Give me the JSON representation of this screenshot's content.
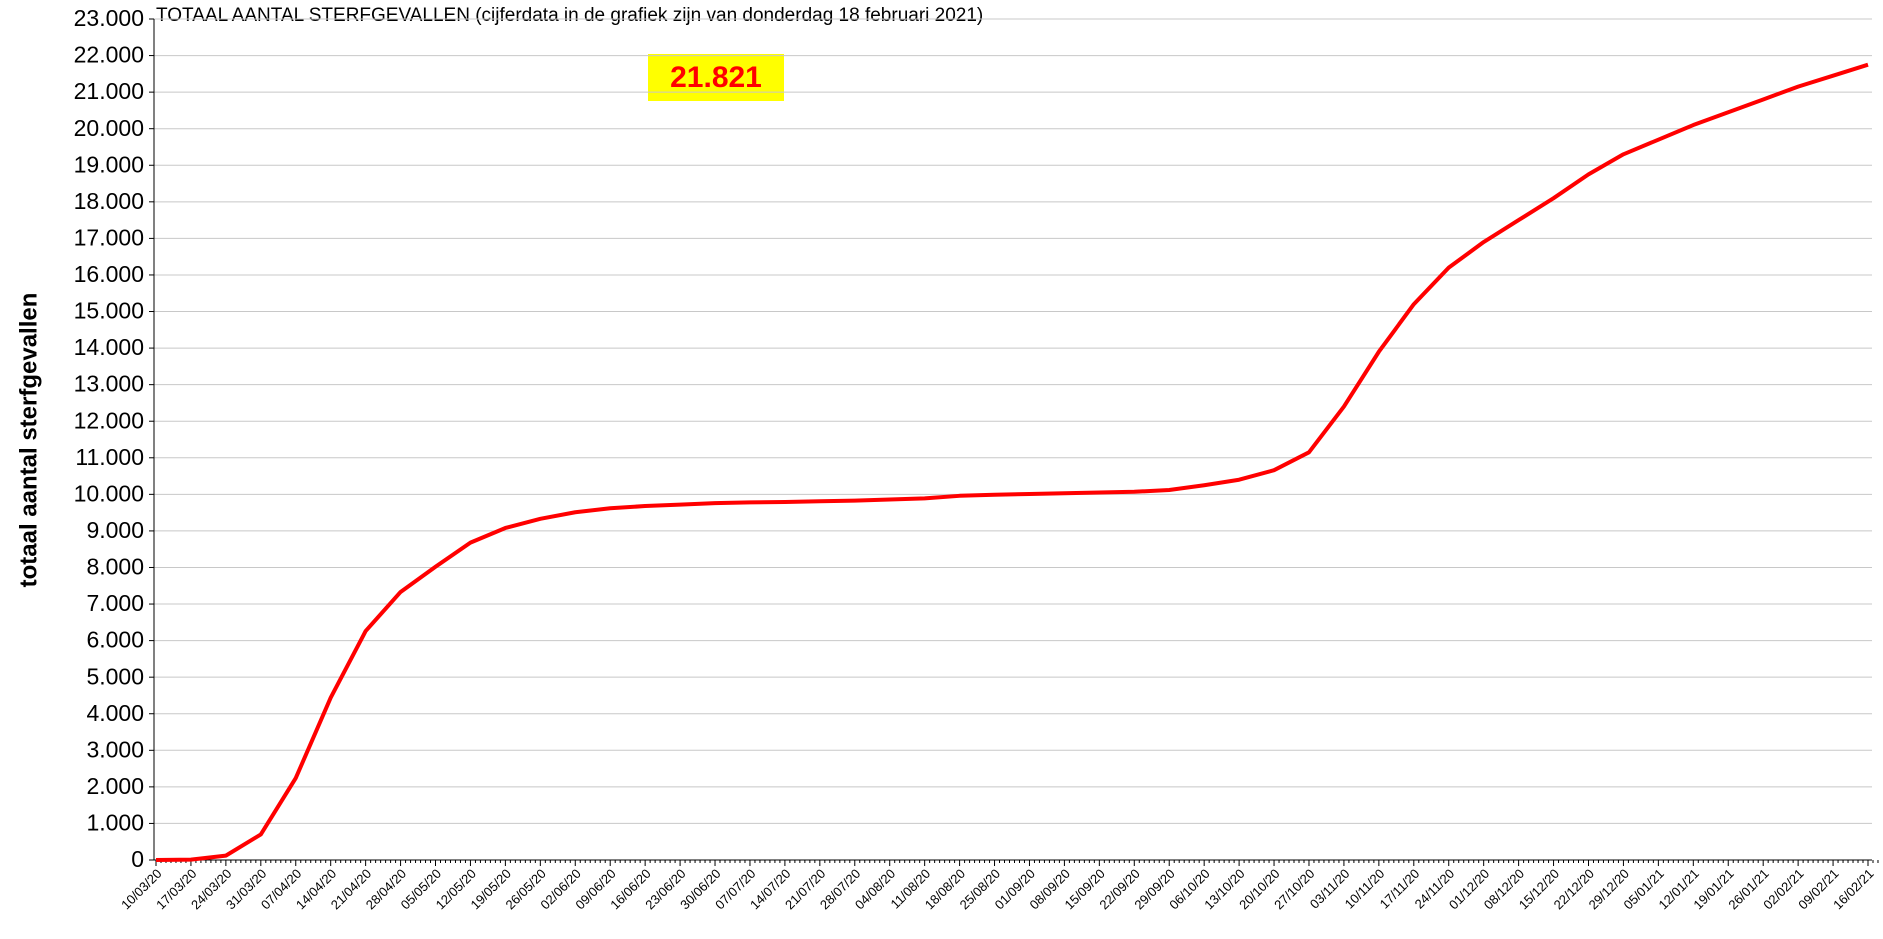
{
  "chart_data": {
    "type": "line",
    "title": "TOTAAL AANTAL STERFGEVALLEN (cijferdata in de grafiek zijn van donderdag 18 februari 2021)",
    "y_label": "totaal aantal sterfgevallen",
    "annotation": "21.821",
    "categories": [
      "10/03/20",
      "17/03/20",
      "24/03/20",
      "31/03/20",
      "07/04/20",
      "14/04/20",
      "21/04/20",
      "28/04/20",
      "05/05/20",
      "12/05/20",
      "19/05/20",
      "26/05/20",
      "02/06/20",
      "09/06/20",
      "16/06/20",
      "23/06/20",
      "30/06/20",
      "07/07/20",
      "14/07/20",
      "21/07/20",
      "28/07/20",
      "04/08/20",
      "11/08/20",
      "18/08/20",
      "25/08/20",
      "01/09/20",
      "08/09/20",
      "15/09/20",
      "22/09/20",
      "29/09/20",
      "06/10/20",
      "13/10/20",
      "20/10/20",
      "27/10/20",
      "03/11/20",
      "10/11/20",
      "17/11/20",
      "24/11/20",
      "01/12/20",
      "08/12/20",
      "15/12/20",
      "22/12/20",
      "29/12/20",
      "05/01/21",
      "12/01/21",
      "19/01/21",
      "26/01/21",
      "02/02/21",
      "09/02/21",
      "16/02/21"
    ],
    "series": [
      {
        "name": "totaal aantal sterfgevallen",
        "color": "#ff0000",
        "values": [
          0,
          10,
          120,
          700,
          2240,
          4440,
          6260,
          7330,
          8020,
          8680,
          9080,
          9330,
          9510,
          9620,
          9680,
          9720,
          9760,
          9780,
          9790,
          9810,
          9830,
          9860,
          9890,
          9960,
          9990,
          10010,
          10030,
          10050,
          10070,
          10120,
          10250,
          10400,
          10660,
          11150,
          12400,
          13900,
          15200,
          16200,
          16900,
          17500,
          18100,
          18750,
          19300,
          19700,
          20100,
          20450,
          20800,
          21150,
          21450,
          21750
        ]
      }
    ],
    "ylim": [
      0,
      23000
    ],
    "yticks": [
      0,
      {
        "value": 1000,
        "label": "1.000"
      },
      {
        "value": 2000,
        "label": "2.000"
      },
      {
        "value": 3000,
        "label": "3.000"
      },
      {
        "value": 4000,
        "label": "4.000"
      },
      {
        "value": 5000,
        "label": "5.000"
      },
      {
        "value": 6000,
        "label": "6.000"
      },
      {
        "value": 7000,
        "label": "7.000"
      },
      {
        "value": 8000,
        "label": "8.000"
      },
      {
        "value": 9000,
        "label": "9.000"
      },
      {
        "value": 10000,
        "label": "10.000"
      },
      {
        "value": 11000,
        "label": "11.000"
      },
      {
        "value": 12000,
        "label": "12.000"
      },
      {
        "value": 13000,
        "label": "13.000"
      },
      {
        "value": 14000,
        "label": "14.000"
      },
      {
        "value": 15000,
        "label": "15.000"
      },
      {
        "value": 16000,
        "label": "16.000"
      },
      {
        "value": 17000,
        "label": "17.000"
      },
      {
        "value": 18000,
        "label": "18.000"
      },
      {
        "value": 19000,
        "label": "19.000"
      },
      {
        "value": 20000,
        "label": "20.000"
      },
      {
        "value": 21000,
        "label": "21.000"
      },
      {
        "value": 22000,
        "label": "22.000"
      },
      {
        "value": 23000,
        "label": "23.000"
      }
    ],
    "grid": true
  }
}
